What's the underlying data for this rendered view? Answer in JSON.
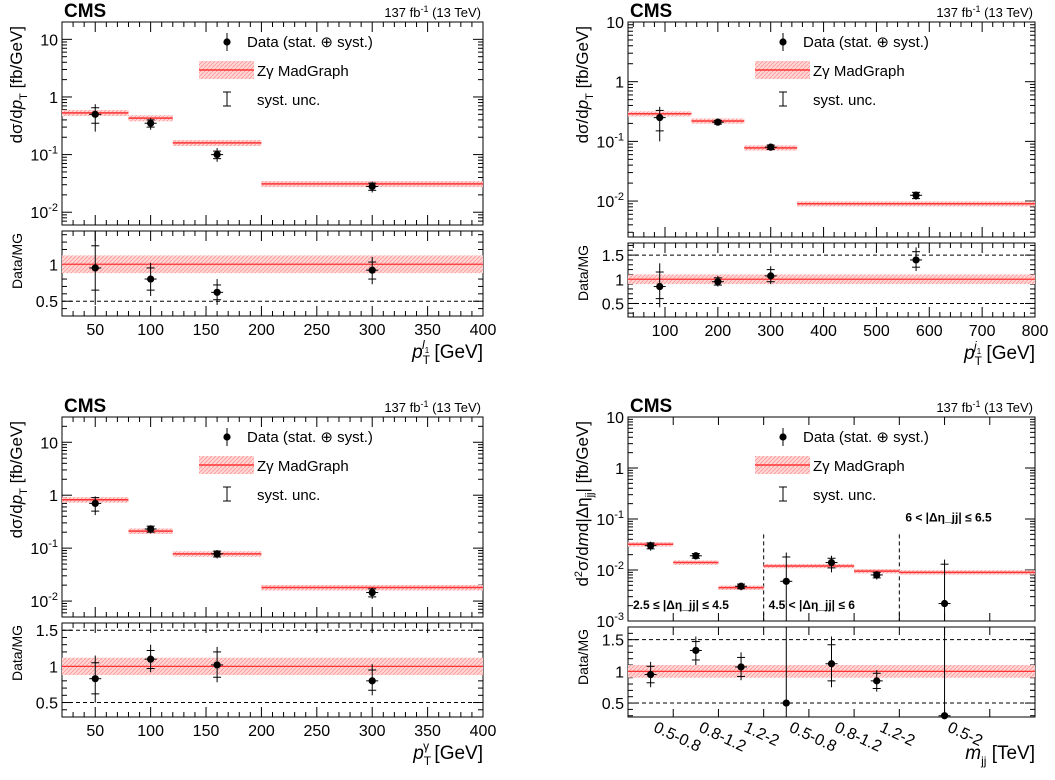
{
  "header": {
    "experiment": "CMS",
    "lumi": "137 fb",
    "lumi_sup": "-1",
    "energy": " (13 TeV)"
  },
  "legend": {
    "data": "Data (stat. ⊕ syst.)",
    "mc": "Zγ MadGraph",
    "syst": "syst. unc."
  },
  "colors": {
    "mc_line": "#ff3333",
    "mc_band": "#ffc4c4",
    "data": "#000000"
  },
  "chart_data": [
    {
      "type": "scatter",
      "id": "lep",
      "ylabel": "dσ/dp_T [fb/GeV]",
      "ratio_ylabel": "Data/MG",
      "xlabel_tex": "p_T^{l_1} [GeV]",
      "x_scale": "linear",
      "xlim": [
        20,
        400
      ],
      "ylim": [
        0.006,
        20
      ],
      "y_scale": "log",
      "ratio_ylim": [
        0.3,
        1.45
      ],
      "x_ticks": [
        50,
        100,
        150,
        200,
        250,
        300,
        350,
        400
      ],
      "y_ticks": [
        {
          "v": 10,
          "l": "10"
        },
        {
          "v": 1,
          "l": "1"
        },
        {
          "v": 0.1,
          "l": "10",
          "e": "-1"
        },
        {
          "v": 0.01,
          "l": "10",
          "e": "-2"
        }
      ],
      "ratio_ticks": [
        {
          "v": 1,
          "l": "1"
        },
        {
          "v": 0.5,
          "l": "0.5"
        }
      ],
      "ratio_dashed": [
        1,
        0.5
      ],
      "mc": [
        {
          "lo": 20,
          "hi": 80,
          "v": 0.53
        },
        {
          "lo": 80,
          "hi": 120,
          "v": 0.43
        },
        {
          "lo": 120,
          "hi": 200,
          "v": 0.16
        },
        {
          "lo": 200,
          "hi": 400,
          "v": 0.031
        }
      ],
      "data": [
        {
          "x": 50,
          "y": 0.5,
          "dn": 0.25,
          "up": 0.75,
          "sdn": 0.35,
          "sup": 0.65
        },
        {
          "x": 100,
          "y": 0.35,
          "dn": 0.27,
          "up": 0.43,
          "sdn": 0.3,
          "sup": 0.4
        },
        {
          "x": 160,
          "y": 0.1,
          "dn": 0.075,
          "up": 0.13,
          "sdn": 0.085,
          "sup": 0.115
        },
        {
          "x": 300,
          "y": 0.028,
          "dn": 0.022,
          "up": 0.034,
          "sdn": 0.024,
          "sup": 0.032
        }
      ],
      "ratio": [
        {
          "x": 50,
          "y": 0.95,
          "dn": 0.45,
          "up": 1.45,
          "sdn": 0.65,
          "sup": 1.25
        },
        {
          "x": 100,
          "y": 0.8,
          "dn": 0.57,
          "up": 1.02,
          "sdn": 0.65,
          "sup": 0.95
        },
        {
          "x": 160,
          "y": 0.62,
          "dn": 0.45,
          "up": 0.8,
          "sdn": 0.52,
          "sup": 0.72
        },
        {
          "x": 300,
          "y": 0.92,
          "dn": 0.73,
          "up": 1.1,
          "sdn": 0.8,
          "sup": 1.03
        }
      ],
      "band_frac": 0.12
    },
    {
      "type": "scatter",
      "id": "jet",
      "ylabel": "dσ/dp_T [fb/GeV]",
      "ratio_ylabel": "Data/MG",
      "xlabel_tex": "p_T^{j_1} [GeV]",
      "x_scale": "linear",
      "xlim": [
        30,
        800
      ],
      "ylim": [
        0.0025,
        10
      ],
      "y_scale": "log",
      "ratio_ylim": [
        0.22,
        1.75
      ],
      "x_ticks": [
        100,
        200,
        300,
        400,
        500,
        600,
        700,
        800
      ],
      "y_ticks": [
        {
          "v": 10,
          "l": "10"
        },
        {
          "v": 1,
          "l": "1"
        },
        {
          "v": 0.1,
          "l": "10",
          "e": "-1"
        },
        {
          "v": 0.01,
          "l": "10",
          "e": "-2"
        }
      ],
      "ratio_ticks": [
        {
          "v": 1.5,
          "l": "1.5"
        },
        {
          "v": 1,
          "l": "1"
        },
        {
          "v": 0.5,
          "l": "0.5"
        }
      ],
      "ratio_dashed": [
        1.5,
        1,
        0.5
      ],
      "mc": [
        {
          "lo": 30,
          "hi": 150,
          "v": 0.29
        },
        {
          "lo": 150,
          "hi": 250,
          "v": 0.22
        },
        {
          "lo": 250,
          "hi": 350,
          "v": 0.078
        },
        {
          "lo": 350,
          "hi": 800,
          "v": 0.009
        }
      ],
      "data": [
        {
          "x": 90,
          "y": 0.25,
          "dn": 0.1,
          "up": 0.38,
          "sdn": 0.15,
          "sup": 0.33
        },
        {
          "x": 200,
          "y": 0.21,
          "dn": 0.19,
          "up": 0.235,
          "sdn": 0.195,
          "sup": 0.225
        },
        {
          "x": 300,
          "y": 0.08,
          "dn": 0.07,
          "up": 0.09,
          "sdn": 0.073,
          "sup": 0.087
        },
        {
          "x": 575,
          "y": 0.0125,
          "dn": 0.0105,
          "up": 0.0145,
          "sdn": 0.011,
          "sup": 0.014
        }
      ],
      "ratio": [
        {
          "x": 90,
          "y": 0.85,
          "dn": 0.42,
          "up": 1.33,
          "sdn": 0.6,
          "sup": 1.15
        },
        {
          "x": 200,
          "y": 0.95,
          "dn": 0.85,
          "up": 1.07,
          "sdn": 0.88,
          "sup": 1.03
        },
        {
          "x": 300,
          "y": 1.07,
          "dn": 0.9,
          "up": 1.27,
          "sdn": 0.95,
          "sup": 1.2
        },
        {
          "x": 575,
          "y": 1.4,
          "dn": 1.17,
          "up": 1.66,
          "sdn": 1.25,
          "sup": 1.57
        }
      ],
      "band_frac": 0.1
    },
    {
      "type": "scatter",
      "id": "pho",
      "ylabel": "dσ/dp_T [fb/GeV]",
      "ratio_ylabel": "Data/MG",
      "xlabel_tex": "p_T^{γ} [GeV]",
      "x_scale": "linear",
      "xlim": [
        20,
        400
      ],
      "ylim": [
        0.005,
        30
      ],
      "y_scale": "log",
      "ratio_ylim": [
        0.3,
        1.6
      ],
      "x_ticks": [
        50,
        100,
        150,
        200,
        250,
        300,
        350,
        400
      ],
      "y_ticks": [
        {
          "v": 10,
          "l": "10"
        },
        {
          "v": 1,
          "l": "1"
        },
        {
          "v": 0.1,
          "l": "10",
          "e": "-1"
        },
        {
          "v": 0.01,
          "l": "10",
          "e": "-2"
        }
      ],
      "ratio_ticks": [
        {
          "v": 1.5,
          "l": "1.5"
        },
        {
          "v": 1,
          "l": "1"
        },
        {
          "v": 0.5,
          "l": "0.5"
        }
      ],
      "ratio_dashed": [
        1.5,
        1,
        0.5
      ],
      "mc": [
        {
          "lo": 20,
          "hi": 80,
          "v": 0.82
        },
        {
          "lo": 80,
          "hi": 120,
          "v": 0.21
        },
        {
          "lo": 120,
          "hi": 200,
          "v": 0.078
        },
        {
          "lo": 200,
          "hi": 400,
          "v": 0.018
        }
      ],
      "data": [
        {
          "x": 50,
          "y": 0.7,
          "dn": 0.42,
          "up": 0.95,
          "sdn": 0.5,
          "sup": 0.9
        },
        {
          "x": 100,
          "y": 0.23,
          "dn": 0.19,
          "up": 0.27,
          "sdn": 0.2,
          "sup": 0.26
        },
        {
          "x": 160,
          "y": 0.078,
          "dn": 0.064,
          "up": 0.092,
          "sdn": 0.068,
          "sup": 0.088
        },
        {
          "x": 300,
          "y": 0.0145,
          "dn": 0.011,
          "up": 0.018,
          "sdn": 0.012,
          "sup": 0.017
        }
      ],
      "ratio": [
        {
          "x": 50,
          "y": 0.83,
          "dn": 0.5,
          "up": 1.15,
          "sdn": 0.62,
          "sup": 1.05
        },
        {
          "x": 100,
          "y": 1.1,
          "dn": 0.92,
          "up": 1.3,
          "sdn": 0.97,
          "sup": 1.22
        },
        {
          "x": 160,
          "y": 1.02,
          "dn": 0.78,
          "up": 1.27,
          "sdn": 0.85,
          "sup": 1.2
        },
        {
          "x": 300,
          "y": 0.8,
          "dn": 0.6,
          "up": 1.03,
          "sdn": 0.67,
          "sup": 0.95
        }
      ],
      "band_frac": 0.12
    },
    {
      "type": "scatter",
      "id": "mjj",
      "ylabel": "d²σ/dmd|Δη_jj| [fb/GeV]",
      "ratio_ylabel": "Data/MG",
      "xlabel_tex": "m_jj [TeV]",
      "x_scale": "index",
      "xlim": [
        0,
        9
      ],
      "ylim": [
        0.001,
        10
      ],
      "y_scale": "log",
      "ratio_ylim": [
        0.28,
        1.7
      ],
      "x_tick_labels": [
        "0.5-0.8",
        "0.8-1.2",
        "1.2-2",
        "0.5-0.8",
        "0.8-1.2",
        "1.2-2",
        "0.5-2"
      ],
      "region_lines": [
        3,
        6
      ],
      "regions": [
        {
          "label": "2.5 ≤ |Δη_jj| ≤ 4.5",
          "pos": "bottom-left"
        },
        {
          "label": "4.5 < |Δη_jj| ≤ 6",
          "pos": "bottom-middle"
        },
        {
          "label": "6 < |Δη_jj| ≤ 6.5",
          "pos": "top-right"
        }
      ],
      "y_ticks": [
        {
          "v": 10,
          "l": "10"
        },
        {
          "v": 1,
          "l": "1"
        },
        {
          "v": 0.1,
          "l": "10",
          "e": "-1"
        },
        {
          "v": 0.01,
          "l": "10",
          "e": "-2"
        },
        {
          "v": 0.001,
          "l": "10",
          "e": "-3"
        }
      ],
      "ratio_ticks": [
        {
          "v": 1.5,
          "l": "1.5"
        },
        {
          "v": 1,
          "l": "1"
        },
        {
          "v": 0.5,
          "l": "0.5"
        }
      ],
      "ratio_dashed": [
        1.5,
        1,
        0.5
      ],
      "mc": [
        {
          "lo": 0,
          "hi": 1,
          "v": 0.032
        },
        {
          "lo": 1,
          "hi": 2,
          "v": 0.014
        },
        {
          "lo": 2,
          "hi": 3,
          "v": 0.0045
        },
        {
          "lo": 3,
          "hi": 4,
          "v": 0.012
        },
        {
          "lo": 4,
          "hi": 5,
          "v": 0.012
        },
        {
          "lo": 5,
          "hi": 6,
          "v": 0.0095
        },
        {
          "lo": 6,
          "hi": 9,
          "v": 0.009
        }
      ],
      "data": [
        {
          "x": 0.5,
          "y": 0.03,
          "dn": 0.024,
          "up": 0.036,
          "sdn": 0.026,
          "sup": 0.034
        },
        {
          "x": 1.5,
          "y": 0.019,
          "dn": 0.016,
          "up": 0.022,
          "sdn": 0.017,
          "sup": 0.021
        },
        {
          "x": 2.5,
          "y": 0.0048,
          "dn": 0.004,
          "up": 0.0056,
          "sdn": 0.0043,
          "sup": 0.0053
        },
        {
          "x": 3.5,
          "y": 0.006,
          "dn": 0.0008,
          "up": 0.022,
          "sdn": 0.001,
          "sup": 0.018
        },
        {
          "x": 4.5,
          "y": 0.014,
          "dn": 0.009,
          "up": 0.019,
          "sdn": 0.011,
          "sup": 0.017
        },
        {
          "x": 5.5,
          "y": 0.008,
          "dn": 0.0065,
          "up": 0.0095,
          "sdn": 0.007,
          "sup": 0.009
        },
        {
          "x": 7.0,
          "y": 0.0022,
          "dn": 0.0008,
          "up": 0.016,
          "sdn": 0.001,
          "sup": 0.013
        }
      ],
      "ratio": [
        {
          "x": 0.5,
          "y": 0.95,
          "dn": 0.75,
          "up": 1.15,
          "sdn": 0.82,
          "sup": 1.08
        },
        {
          "x": 1.5,
          "y": 1.33,
          "dn": 1.1,
          "up": 1.55,
          "sdn": 1.18,
          "sup": 1.47
        },
        {
          "x": 2.5,
          "y": 1.07,
          "dn": 0.86,
          "up": 1.3,
          "sdn": 0.92,
          "sup": 1.22
        },
        {
          "x": 3.5,
          "y": 0.5,
          "dn": 0.28,
          "up": 1.7,
          "sdn": 0.28,
          "sup": 1.7
        },
        {
          "x": 4.5,
          "y": 1.12,
          "dn": 0.75,
          "up": 1.55,
          "sdn": 0.85,
          "sup": 1.42
        },
        {
          "x": 5.5,
          "y": 0.85,
          "dn": 0.68,
          "up": 1.02,
          "sdn": 0.73,
          "sup": 0.97
        },
        {
          "x": 7.0,
          "y": 0.3,
          "dn": 0.28,
          "up": 1.7,
          "sdn": 0.28,
          "sup": 1.7
        }
      ],
      "band_frac": 0.1
    }
  ]
}
